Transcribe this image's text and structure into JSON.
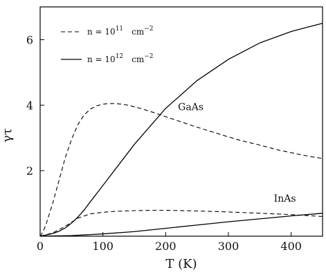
{
  "chart_data": {
    "type": "line",
    "xlabel": "T (K)",
    "ylabel": "γτ",
    "xlim": [
      0,
      450
    ],
    "ylim": [
      0,
      7
    ],
    "xticks": [
      0,
      100,
      200,
      300,
      400
    ],
    "yticks": [
      2,
      4,
      6
    ],
    "xtick_labels": [
      "0",
      "100",
      "200",
      "300",
      "400"
    ],
    "ytick_labels": [
      "2",
      "4",
      "6"
    ],
    "grid": false,
    "legend": {
      "placement": "top-left",
      "entries": [
        {
          "style": "dashed",
          "prefix": "n = 10",
          "exp": "11",
          "unit": "cm",
          "unit_exp": "−2"
        },
        {
          "style": "solid",
          "prefix": "n = 10",
          "exp": "12",
          "unit": "cm",
          "unit_exp": "−2"
        }
      ]
    },
    "annotations": [
      {
        "text": "GaAs",
        "x": 240,
        "y": 3.85
      },
      {
        "text": "InAs",
        "x": 390,
        "y": 1.05
      }
    ],
    "series": [
      {
        "style": "dashed",
        "x": [
          0,
          5,
          10,
          20,
          30,
          40,
          50,
          60,
          70,
          80,
          90,
          100,
          110,
          120,
          130,
          140,
          160,
          180,
          200,
          220,
          250,
          280,
          300,
          320,
          350,
          380,
          400,
          420,
          450
        ],
        "y": [
          0,
          0.15,
          0.4,
          1.0,
          1.7,
          2.4,
          2.95,
          3.4,
          3.7,
          3.88,
          3.98,
          4.03,
          4.05,
          4.05,
          4.03,
          4.0,
          3.9,
          3.78,
          3.65,
          3.52,
          3.33,
          3.15,
          3.03,
          2.92,
          2.78,
          2.63,
          2.55,
          2.47,
          2.37
        ]
      },
      {
        "style": "solid",
        "x": [
          0,
          20,
          30,
          40,
          50,
          60,
          70,
          80,
          100,
          120,
          150,
          200,
          250,
          300,
          350,
          400,
          420,
          450
        ],
        "y": [
          0,
          0.08,
          0.15,
          0.25,
          0.4,
          0.58,
          0.8,
          1.05,
          1.55,
          2.05,
          2.8,
          3.9,
          4.75,
          5.4,
          5.9,
          6.25,
          6.35,
          6.5
        ]
      },
      {
        "style": "dashed",
        "x": [
          0,
          20,
          40,
          60,
          80,
          100,
          120,
          150,
          180,
          200,
          250,
          300,
          350,
          400,
          450
        ],
        "y": [
          0,
          0.1,
          0.3,
          0.55,
          0.68,
          0.73,
          0.76,
          0.78,
          0.79,
          0.79,
          0.77,
          0.74,
          0.7,
          0.66,
          0.6
        ]
      },
      {
        "style": "solid",
        "x": [
          0,
          50,
          100,
          150,
          200,
          250,
          300,
          350,
          400,
          450
        ],
        "y": [
          0,
          0.02,
          0.07,
          0.14,
          0.24,
          0.34,
          0.44,
          0.53,
          0.62,
          0.7
        ]
      }
    ]
  }
}
